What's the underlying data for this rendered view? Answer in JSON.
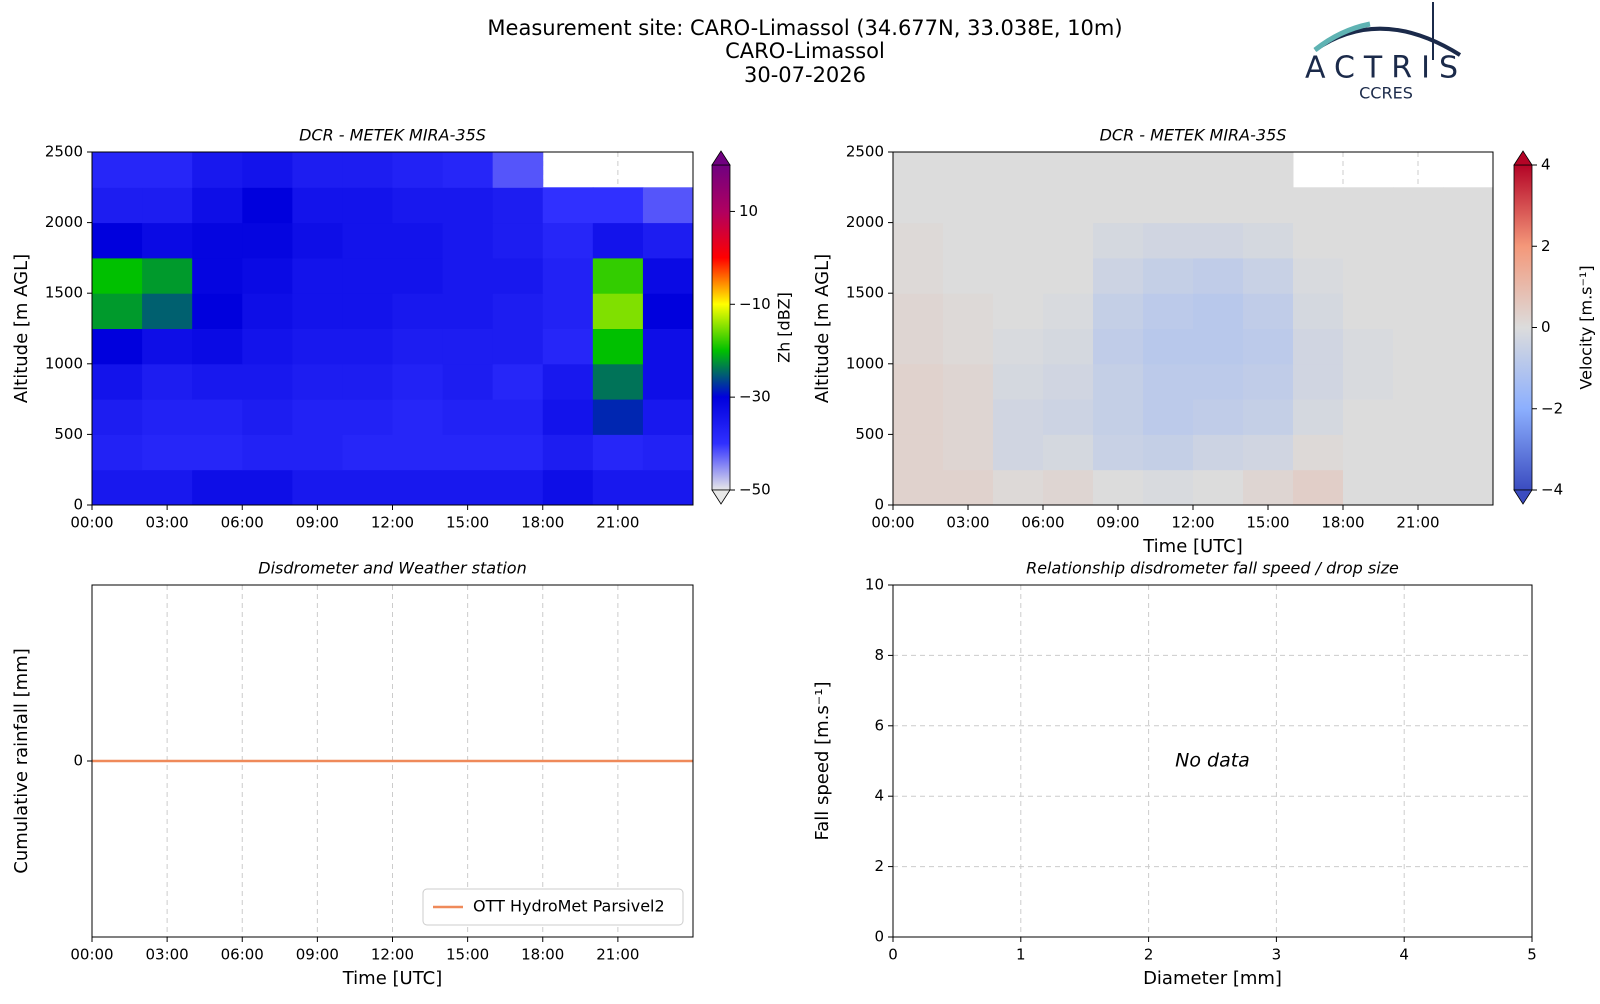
{
  "figure": {
    "title": [
      "Measurement site: CARO-Limassol (34.677N, 33.038E, 10m)",
      "CARO-Limassol",
      "30-07-2026"
    ],
    "logo": "ACTRIS",
    "logo_sub": "CCRES"
  },
  "chart_data": [
    {
      "type": "heatmap",
      "title": "DCR - METEK MIRA-35S",
      "y_label": "Altitude [m AGL]",
      "colorbar_label": "Zh [dBZ]",
      "x": [
        1,
        3,
        5,
        7,
        9,
        11,
        13,
        15,
        17,
        19,
        21,
        23
      ],
      "y": [
        125,
        375,
        625,
        875,
        1125,
        1375,
        1625,
        1875,
        2125,
        2375
      ],
      "values": [
        [
          -35,
          -35,
          -33,
          -33,
          -35,
          -35,
          -35,
          -35,
          -35,
          -33,
          -35,
          -35
        ],
        [
          -37,
          -38,
          -38,
          -37,
          -37,
          -38,
          -38,
          -38,
          -38,
          -36,
          -38,
          -37
        ],
        [
          -36,
          -37,
          -37,
          -36,
          -37,
          -37,
          -38,
          -37,
          -37,
          -34,
          -28,
          -35
        ],
        [
          -34,
          -36,
          -35,
          -35,
          -36,
          -36,
          -37,
          -36,
          -38,
          -35,
          -24,
          -33
        ],
        [
          -30,
          -33,
          -32,
          -34,
          -35,
          -35,
          -36,
          -36,
          -36,
          -38,
          -20,
          -33
        ],
        [
          -22,
          -25,
          -30,
          -33,
          -34,
          -34,
          -35,
          -35,
          -36,
          -37,
          -15,
          -30
        ],
        [
          -20,
          -22,
          -31,
          -32,
          -34,
          -34,
          -34,
          -35,
          -35,
          -37,
          -18,
          -32
        ],
        [
          -30,
          -32,
          -31,
          -31,
          -33,
          -34,
          -34,
          -35,
          -36,
          -38,
          -34,
          -36
        ],
        [
          -36,
          -36,
          -33,
          -30,
          -34,
          -34,
          -35,
          -35,
          -36,
          -40,
          -40,
          -42
        ],
        [
          -38,
          -38,
          -35,
          -34,
          -36,
          -36,
          -37,
          -38,
          -42,
          null,
          null,
          null
        ]
      ],
      "colormap": [
        "#e8e8e8",
        "#3030ff",
        "#0000dd",
        "#00c000",
        "#ffff00",
        "#ff0000",
        "#b00060",
        "#700080"
      ],
      "clim": [
        -50,
        20
      ],
      "cticks": [
        {
          "value": -50,
          "label": "−50"
        },
        {
          "value": -30,
          "label": "−30"
        },
        {
          "value": -10,
          "label": "−10"
        },
        10
      ],
      "xlim": [
        0,
        24
      ],
      "xticks": [
        {
          "value": 0,
          "label": "00:00"
        },
        {
          "value": 3,
          "label": "03:00"
        },
        {
          "value": 6,
          "label": "06:00"
        },
        {
          "value": 9,
          "label": "09:00"
        },
        {
          "value": 12,
          "label": "12:00"
        },
        {
          "value": 15,
          "label": "15:00"
        },
        {
          "value": 18,
          "label": "18:00"
        },
        {
          "value": 21,
          "label": "21:00"
        }
      ],
      "ylim": [
        0,
        2500
      ],
      "yticks": [
        0,
        500,
        1000,
        1500,
        2000,
        2500
      ],
      "grid": true
    },
    {
      "type": "heatmap",
      "title": "DCR - METEK MIRA-35S",
      "x_label": "Time [UTC]",
      "y_label": "Altitude [m AGL]",
      "colorbar_label": "Velocity [m.s⁻¹]",
      "x": [
        1,
        3,
        5,
        7,
        9,
        11,
        13,
        15,
        17,
        19,
        21,
        23
      ],
      "y": [
        125,
        375,
        625,
        875,
        1125,
        1375,
        1625,
        1875,
        2125,
        2375
      ],
      "values": [
        [
          0.3,
          0.3,
          0.1,
          0.2,
          0,
          -0.1,
          0,
          0.2,
          0.4,
          0,
          0,
          0
        ],
        [
          0.3,
          0.2,
          -0.3,
          -0.2,
          -0.5,
          -0.6,
          -0.4,
          -0.3,
          0.1,
          0,
          0,
          0
        ],
        [
          0.3,
          0.2,
          -0.3,
          -0.4,
          -0.6,
          -0.8,
          -0.7,
          -0.6,
          -0.2,
          0,
          0,
          0
        ],
        [
          0.3,
          0.2,
          -0.2,
          -0.3,
          -0.6,
          -0.8,
          -0.8,
          -0.7,
          -0.3,
          -0.1,
          0,
          0
        ],
        [
          0.2,
          0.1,
          -0.1,
          -0.2,
          -0.7,
          -0.9,
          -0.9,
          -0.8,
          -0.3,
          -0.1,
          0,
          0
        ],
        [
          0.2,
          0.1,
          0,
          -0.1,
          -0.6,
          -0.8,
          -0.9,
          -0.7,
          -0.2,
          0,
          0,
          0
        ],
        [
          0.1,
          0,
          0,
          0,
          -0.4,
          -0.6,
          -0.7,
          -0.5,
          -0.1,
          0,
          0,
          0
        ],
        [
          0.1,
          0,
          0,
          0,
          -0.2,
          -0.3,
          -0.3,
          -0.2,
          0,
          0,
          0,
          0
        ],
        [
          0,
          0,
          0,
          0,
          0,
          0,
          0,
          0,
          0,
          0,
          0,
          0
        ],
        [
          0,
          0,
          0,
          0,
          0,
          0,
          0,
          0,
          null,
          null,
          null,
          null
        ]
      ],
      "colormap": [
        "#3b4cc0",
        "#8caffe",
        "#dcdcdc",
        "#f4987a",
        "#b40426"
      ],
      "clim": [
        -4,
        4
      ],
      "cticks": [
        {
          "value": -4,
          "label": "−4"
        },
        {
          "value": -2,
          "label": "−2"
        },
        0,
        2,
        4
      ],
      "xlim": [
        0,
        24
      ],
      "xticks": [
        {
          "value": 0,
          "label": "00:00"
        },
        {
          "value": 3,
          "label": "03:00"
        },
        {
          "value": 6,
          "label": "06:00"
        },
        {
          "value": 9,
          "label": "09:00"
        },
        {
          "value": 12,
          "label": "12:00"
        },
        {
          "value": 15,
          "label": "15:00"
        },
        {
          "value": 18,
          "label": "18:00"
        },
        {
          "value": 21,
          "label": "21:00"
        }
      ],
      "ylim": [
        0,
        2500
      ],
      "yticks": [
        0,
        500,
        1000,
        1500,
        2000,
        2500
      ],
      "grid": true
    },
    {
      "type": "line",
      "title": "Disdrometer and Weather station",
      "x_label": "Time [UTC]",
      "y_label": "Cumulative rainfall [mm]",
      "x": [
        0,
        24
      ],
      "series": [
        {
          "name": "OTT HydroMet Parsivel2",
          "color": "#ef8a5a",
          "values": [
            0,
            0
          ]
        }
      ],
      "xlim": [
        0,
        24
      ],
      "xticks": [
        {
          "value": 0,
          "label": "00:00"
        },
        {
          "value": 3,
          "label": "03:00"
        },
        {
          "value": 6,
          "label": "06:00"
        },
        {
          "value": 9,
          "label": "09:00"
        },
        {
          "value": 12,
          "label": "12:00"
        },
        {
          "value": 15,
          "label": "15:00"
        },
        {
          "value": 18,
          "label": "18:00"
        },
        {
          "value": 21,
          "label": "21:00"
        }
      ],
      "ylim": [
        -0.055,
        0.055
      ],
      "yticks": [
        0
      ],
      "grid": true,
      "legend": "lower right"
    },
    {
      "type": "scatter",
      "title": "Relationship disdrometer fall speed / drop size",
      "x_label": "Diameter [mm]",
      "y_label": "Fall speed [m.s⁻¹]",
      "x": [],
      "values": [],
      "annotation": "No data",
      "xlim": [
        0,
        5
      ],
      "xticks": [
        0,
        1,
        2,
        3,
        4,
        5
      ],
      "ylim": [
        0,
        10
      ],
      "yticks": [
        0,
        2,
        4,
        6,
        8,
        10
      ],
      "grid": true
    }
  ]
}
